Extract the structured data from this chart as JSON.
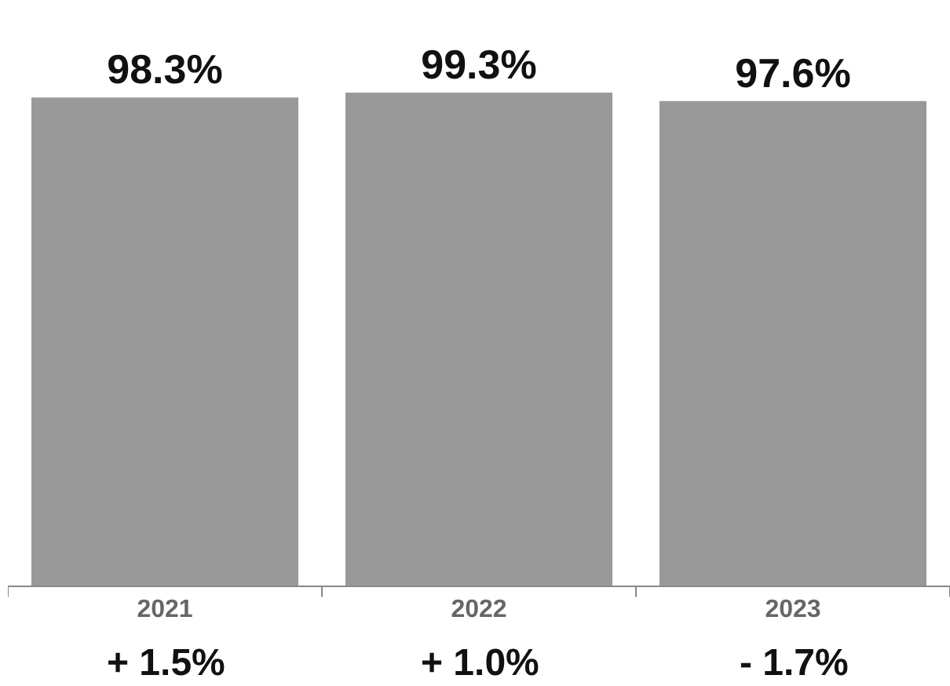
{
  "chart_data": {
    "type": "bar",
    "categories": [
      "2021",
      "2022",
      "2023"
    ],
    "values": [
      98.3,
      99.3,
      97.6
    ],
    "value_labels": [
      "98.3%",
      "99.3%",
      "97.6%"
    ],
    "color": "#999999",
    "annotations": [
      "+ 1.5%",
      "+ 1.0%",
      "- 1.7%"
    ]
  }
}
